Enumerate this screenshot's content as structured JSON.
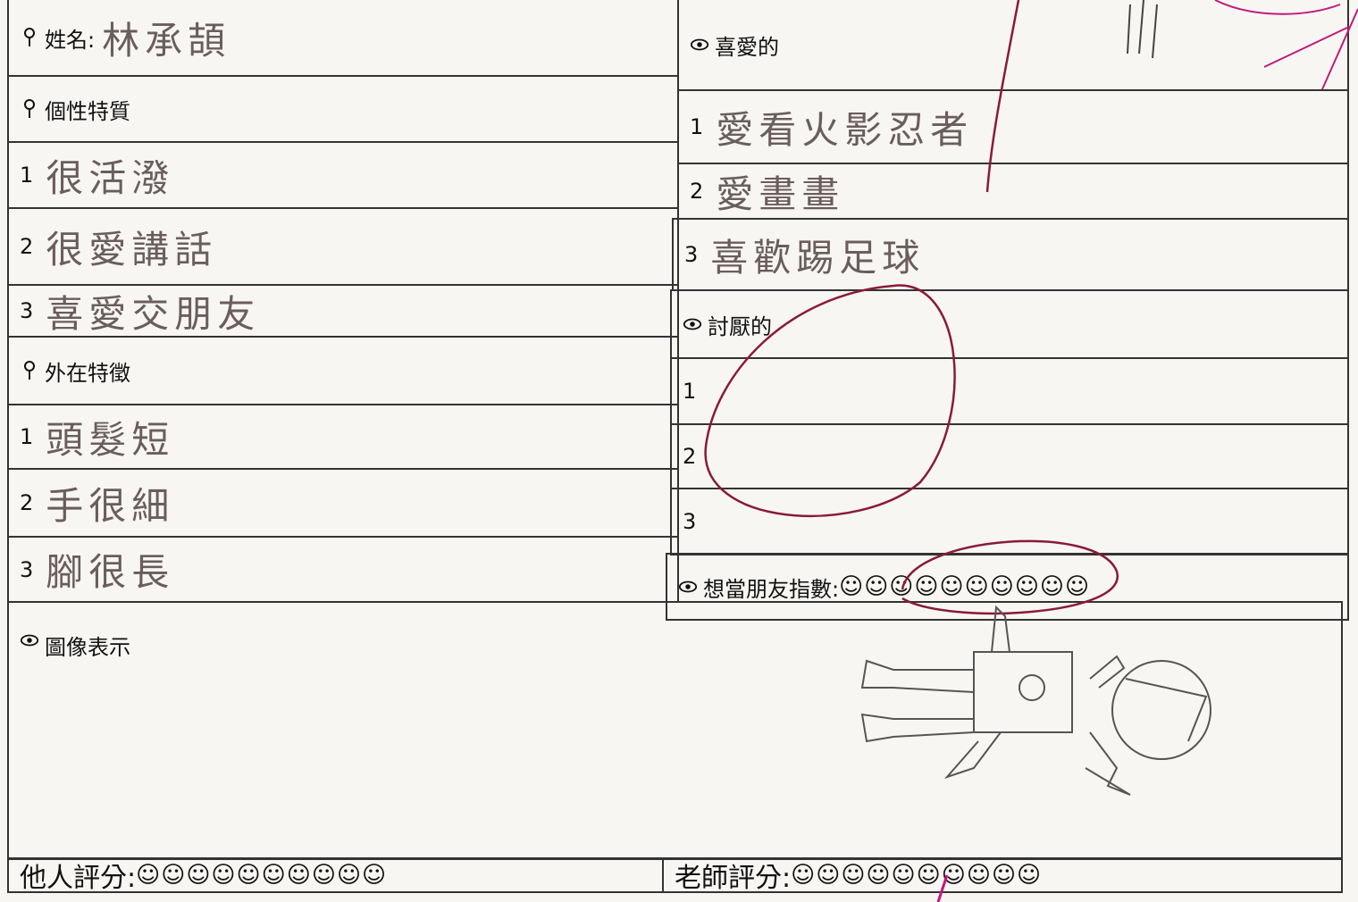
{
  "name": {
    "label": "姓名:",
    "value": "林承頡"
  },
  "personality": {
    "heading": "個性特質",
    "items": [
      {
        "number": "1",
        "text": "很活潑"
      },
      {
        "number": "2",
        "text": "很愛講話"
      },
      {
        "number": "3",
        "text": "喜愛交朋友"
      }
    ]
  },
  "appearance": {
    "heading": "外在特徵",
    "items": [
      {
        "number": "1",
        "text": "頭髮短"
      },
      {
        "number": "2",
        "text": "手很細"
      },
      {
        "number": "3",
        "text": "腳很長"
      }
    ]
  },
  "picture": {
    "heading": "圖像表示"
  },
  "likes": {
    "heading": "喜愛的",
    "items": [
      {
        "number": "1",
        "text": "愛看火影忍者"
      },
      {
        "number": "2",
        "text": "愛畫畫"
      },
      {
        "number": "3",
        "text": "喜歡踢足球"
      }
    ]
  },
  "dislikes": {
    "heading": "討厭的",
    "items": [
      {
        "number": "1"
      },
      {
        "number": "2"
      },
      {
        "number": "3"
      }
    ]
  },
  "friend_index": {
    "label": "想當朋友指數:",
    "value": "☺☺☺☺☺☺☺☺☺☺"
  },
  "peer_score": {
    "label": "他人評分:",
    "value": "☺☺☺☺☺☺☺☺☺☺"
  },
  "teacher_score": {
    "label": "老師評分:",
    "value": "☺☺☺☺☺☺☺☺☺☺"
  }
}
